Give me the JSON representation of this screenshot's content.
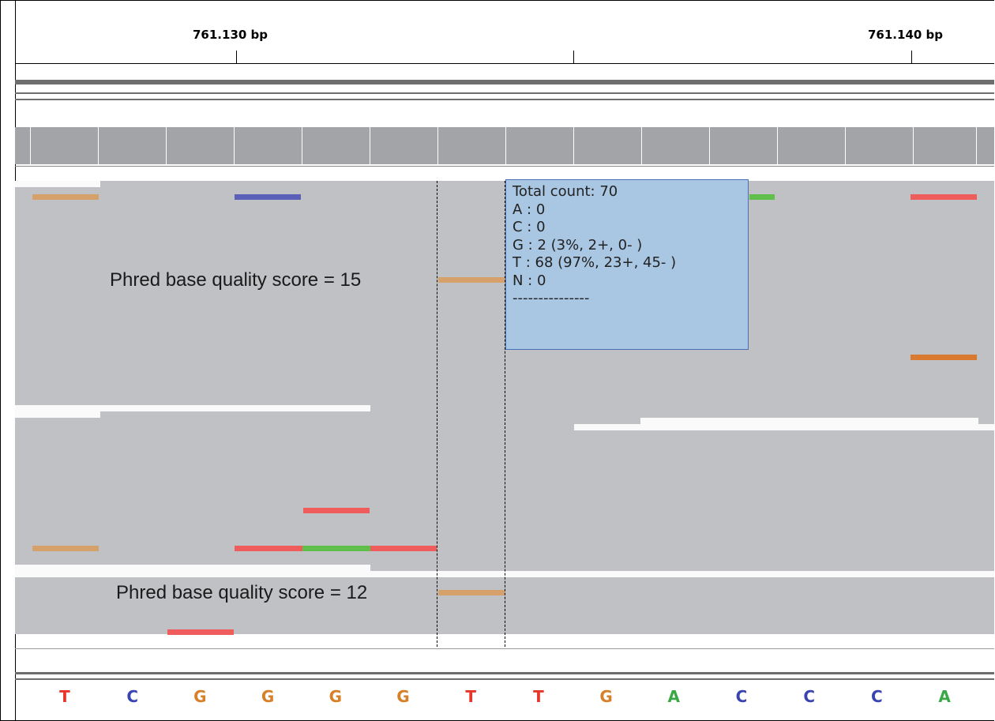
{
  "ruler": {
    "pos_left": "761.130 bp",
    "pos_right": "761.140 bp"
  },
  "popup": {
    "lines": [
      "Total count: 70",
      "A : 0",
      "C : 0",
      "G : 2 (3%, 2+, 0- )",
      "T : 68 (97%, 23+, 45- )",
      "N : 0",
      "---------------"
    ]
  },
  "annotations": {
    "upper": "Phred base quality score = 15",
    "lower": "Phred base quality score = 12"
  },
  "sequence": [
    {
      "base": "T",
      "color": "#e8352a"
    },
    {
      "base": "C",
      "color": "#3a44b0"
    },
    {
      "base": "G",
      "color": "#d6802a"
    },
    {
      "base": "G",
      "color": "#d6802a"
    },
    {
      "base": "G",
      "color": "#d6802a"
    },
    {
      "base": "G",
      "color": "#d6802a"
    },
    {
      "base": "T",
      "color": "#e8352a"
    },
    {
      "base": "T",
      "color": "#e8352a"
    },
    {
      "base": "G",
      "color": "#d6802a"
    },
    {
      "base": "A",
      "color": "#3aa845"
    },
    {
      "base": "C",
      "color": "#3a44b0"
    },
    {
      "base": "C",
      "color": "#3a44b0"
    },
    {
      "base": "C",
      "color": "#3a44b0"
    },
    {
      "base": "A",
      "color": "#3aa845"
    }
  ],
  "colors": {
    "A": "#5fbf4a",
    "C": "#5a5fb8",
    "G_high": "#d6a06a",
    "G_low": "#d97a30",
    "T": "#ef5c5c",
    "coverage": "#a2a4a8",
    "read": "#bfc1c5",
    "popup_bg": "#a9c6e2"
  }
}
